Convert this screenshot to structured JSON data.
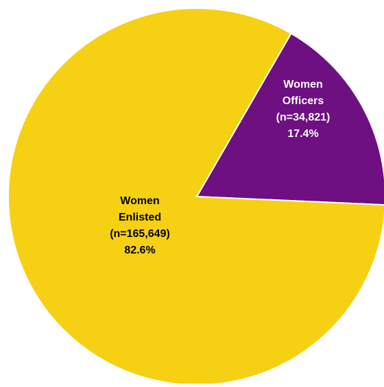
{
  "chart_data": {
    "type": "pie",
    "title": "",
    "slices": [
      {
        "name": "Women Officers",
        "count": 34821,
        "percent": 17.4,
        "color": "#6e0f82",
        "label_lines": [
          "Women",
          "Officers",
          "(n=34,821)",
          "17.4%"
        ],
        "label_color": "#ffffff"
      },
      {
        "name": "Women Enlisted",
        "count": 165649,
        "percent": 82.6,
        "color": "#f6d013",
        "label_lines": [
          "Women",
          "Enlisted",
          "(n=165,649)",
          "82.6%"
        ],
        "label_color": "#000000"
      }
    ],
    "start_angle_deg": 30,
    "direction": "clockwise",
    "legend": "none"
  }
}
